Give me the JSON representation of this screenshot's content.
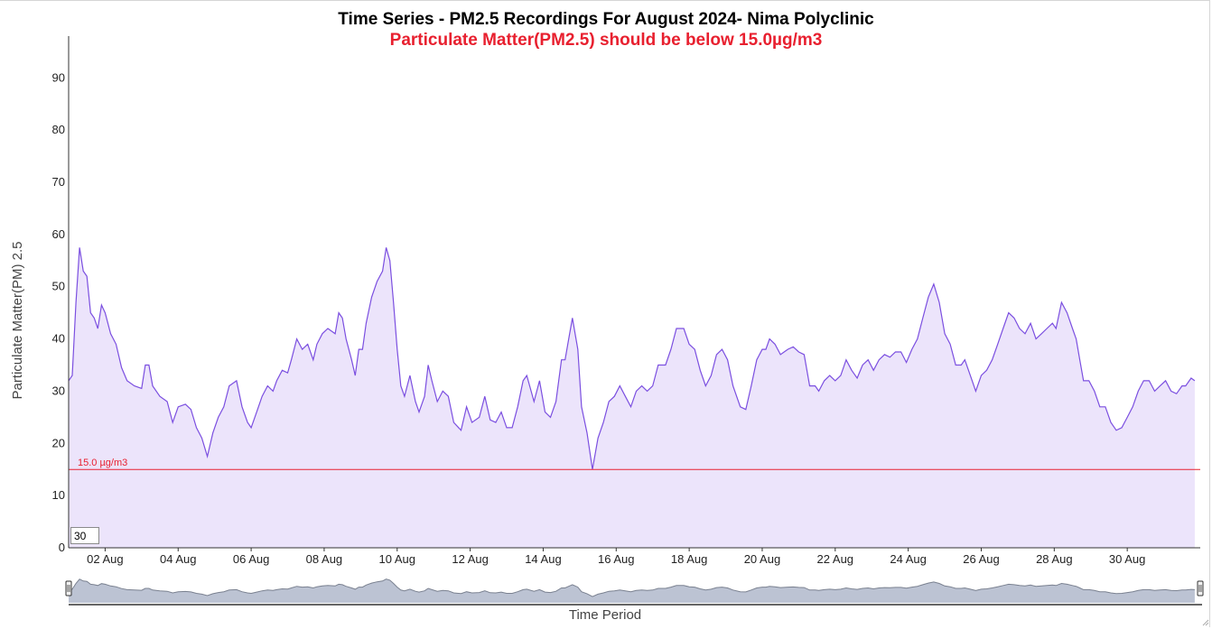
{
  "chart_data": {
    "type": "area",
    "title": "Time Series - PM2.5 Recordings For August 2024- Nima Polyclinic",
    "subtitle": "Particulate Matter(PM2.5) should be below 15.0µg/m3",
    "xlabel": "Time Period",
    "ylabel": "Particulate Matter(PM) 2.5",
    "ylim": [
      0,
      98
    ],
    "yticks": [
      0,
      10,
      20,
      30,
      40,
      50,
      60,
      70,
      80,
      90
    ],
    "xticks": [
      "02 Aug",
      "04 Aug",
      "06 Aug",
      "08 Aug",
      "10 Aug",
      "12 Aug",
      "14 Aug",
      "16 Aug",
      "18 Aug",
      "20 Aug",
      "22 Aug",
      "24 Aug",
      "26 Aug",
      "28 Aug",
      "30 Aug"
    ],
    "xlim_day": [
      1.0,
      32.0
    ],
    "threshold": {
      "value": 15.0,
      "label": "15.0 µg/m3",
      "color": "#e8202f"
    },
    "line_color": "#7b4fe0",
    "fill_color": "#ece4fb",
    "grid": false,
    "series": [
      {
        "values": [
          [
            1.0,
            32
          ],
          [
            1.1,
            33
          ],
          [
            1.2,
            47
          ],
          [
            1.3,
            57.5
          ],
          [
            1.4,
            53
          ],
          [
            1.5,
            52
          ],
          [
            1.6,
            45
          ],
          [
            1.7,
            44
          ],
          [
            1.8,
            42
          ],
          [
            1.9,
            46.5
          ],
          [
            2.0,
            45
          ],
          [
            2.15,
            41
          ],
          [
            2.3,
            39
          ],
          [
            2.45,
            34.5
          ],
          [
            2.6,
            32
          ],
          [
            2.8,
            31
          ],
          [
            3.0,
            30.5
          ],
          [
            3.1,
            35
          ],
          [
            3.2,
            35
          ],
          [
            3.3,
            31
          ],
          [
            3.5,
            29
          ],
          [
            3.7,
            28
          ],
          [
            3.85,
            24
          ],
          [
            4.0,
            27
          ],
          [
            4.2,
            27.5
          ],
          [
            4.35,
            26.5
          ],
          [
            4.5,
            23
          ],
          [
            4.65,
            21
          ],
          [
            4.8,
            17.5
          ],
          [
            4.95,
            22
          ],
          [
            5.1,
            25
          ],
          [
            5.25,
            27
          ],
          [
            5.4,
            31
          ],
          [
            5.6,
            32
          ],
          [
            5.75,
            27
          ],
          [
            5.9,
            24
          ],
          [
            6.0,
            23
          ],
          [
            6.15,
            26
          ],
          [
            6.3,
            29
          ],
          [
            6.45,
            31
          ],
          [
            6.6,
            30
          ],
          [
            6.7,
            32
          ],
          [
            6.85,
            34
          ],
          [
            7.0,
            33.5
          ],
          [
            7.1,
            36
          ],
          [
            7.25,
            40
          ],
          [
            7.4,
            38
          ],
          [
            7.55,
            39
          ],
          [
            7.7,
            36
          ],
          [
            7.8,
            39
          ],
          [
            7.95,
            41
          ],
          [
            8.1,
            42
          ],
          [
            8.3,
            41
          ],
          [
            8.4,
            45
          ],
          [
            8.5,
            44
          ],
          [
            8.6,
            40
          ],
          [
            8.75,
            36
          ],
          [
            8.85,
            33
          ],
          [
            8.95,
            38
          ],
          [
            9.05,
            38
          ],
          [
            9.15,
            43
          ],
          [
            9.3,
            48
          ],
          [
            9.45,
            51
          ],
          [
            9.6,
            53
          ],
          [
            9.7,
            57.5
          ],
          [
            9.8,
            55
          ],
          [
            9.9,
            47
          ],
          [
            10.0,
            38
          ],
          [
            10.1,
            31
          ],
          [
            10.2,
            29
          ],
          [
            10.35,
            33
          ],
          [
            10.5,
            28
          ],
          [
            10.6,
            26
          ],
          [
            10.75,
            29
          ],
          [
            10.85,
            35
          ],
          [
            10.95,
            32
          ],
          [
            11.1,
            28
          ],
          [
            11.25,
            30
          ],
          [
            11.4,
            29
          ],
          [
            11.55,
            24
          ],
          [
            11.75,
            22.5
          ],
          [
            11.9,
            27
          ],
          [
            12.05,
            24
          ],
          [
            12.25,
            25
          ],
          [
            12.4,
            29
          ],
          [
            12.55,
            24.5
          ],
          [
            12.7,
            24
          ],
          [
            12.85,
            26
          ],
          [
            13.0,
            23
          ],
          [
            13.15,
            23
          ],
          [
            13.3,
            27
          ],
          [
            13.45,
            32
          ],
          [
            13.55,
            33
          ],
          [
            13.75,
            28
          ],
          [
            13.9,
            32
          ],
          [
            14.05,
            26
          ],
          [
            14.2,
            25
          ],
          [
            14.35,
            28
          ],
          [
            14.5,
            36
          ],
          [
            14.6,
            36
          ],
          [
            14.7,
            40
          ],
          [
            14.8,
            44
          ],
          [
            14.95,
            38
          ],
          [
            15.05,
            27
          ],
          [
            15.2,
            22
          ],
          [
            15.35,
            15
          ],
          [
            15.5,
            21
          ],
          [
            15.65,
            24
          ],
          [
            15.8,
            28
          ],
          [
            15.95,
            29
          ],
          [
            16.1,
            31
          ],
          [
            16.25,
            29
          ],
          [
            16.4,
            27
          ],
          [
            16.55,
            30
          ],
          [
            16.7,
            31
          ],
          [
            16.85,
            30
          ],
          [
            17.0,
            31
          ],
          [
            17.15,
            35
          ],
          [
            17.35,
            35
          ],
          [
            17.5,
            38
          ],
          [
            17.65,
            42
          ],
          [
            17.85,
            42
          ],
          [
            18.0,
            39
          ],
          [
            18.15,
            38
          ],
          [
            18.3,
            34
          ],
          [
            18.45,
            31
          ],
          [
            18.6,
            33
          ],
          [
            18.75,
            37
          ],
          [
            18.9,
            38
          ],
          [
            19.05,
            36
          ],
          [
            19.2,
            31
          ],
          [
            19.4,
            27
          ],
          [
            19.55,
            26.5
          ],
          [
            19.7,
            31
          ],
          [
            19.85,
            36
          ],
          [
            20.0,
            38
          ],
          [
            20.1,
            38
          ],
          [
            20.2,
            40
          ],
          [
            20.35,
            39
          ],
          [
            20.5,
            37
          ],
          [
            20.7,
            38
          ],
          [
            20.85,
            38.5
          ],
          [
            21.0,
            37.5
          ],
          [
            21.15,
            37
          ],
          [
            21.3,
            31
          ],
          [
            21.45,
            31
          ],
          [
            21.55,
            30
          ],
          [
            21.7,
            32
          ],
          [
            21.85,
            33
          ],
          [
            22.0,
            32
          ],
          [
            22.15,
            33
          ],
          [
            22.3,
            36
          ],
          [
            22.45,
            34
          ],
          [
            22.6,
            32.5
          ],
          [
            22.75,
            35
          ],
          [
            22.9,
            36
          ],
          [
            23.05,
            34
          ],
          [
            23.2,
            36
          ],
          [
            23.35,
            37
          ],
          [
            23.5,
            36.5
          ],
          [
            23.65,
            37.5
          ],
          [
            23.8,
            37.5
          ],
          [
            23.95,
            35.5
          ],
          [
            24.1,
            38
          ],
          [
            24.25,
            40
          ],
          [
            24.4,
            44
          ],
          [
            24.55,
            48
          ],
          [
            24.7,
            50.5
          ],
          [
            24.85,
            47
          ],
          [
            25.0,
            41
          ],
          [
            25.15,
            39
          ],
          [
            25.3,
            35
          ],
          [
            25.45,
            35
          ],
          [
            25.55,
            36
          ],
          [
            25.7,
            33
          ],
          [
            25.85,
            30
          ],
          [
            26.0,
            33
          ],
          [
            26.15,
            34
          ],
          [
            26.3,
            36
          ],
          [
            26.45,
            39
          ],
          [
            26.6,
            42
          ],
          [
            26.75,
            45
          ],
          [
            26.9,
            44
          ],
          [
            27.05,
            42
          ],
          [
            27.2,
            41
          ],
          [
            27.35,
            43
          ],
          [
            27.5,
            40
          ],
          [
            27.65,
            41
          ],
          [
            27.8,
            42
          ],
          [
            27.95,
            43
          ],
          [
            28.05,
            42
          ],
          [
            28.2,
            47
          ],
          [
            28.35,
            45
          ],
          [
            28.5,
            42
          ],
          [
            28.6,
            40
          ],
          [
            28.7,
            36
          ],
          [
            28.8,
            32
          ],
          [
            28.95,
            32
          ],
          [
            29.1,
            30
          ],
          [
            29.25,
            27
          ],
          [
            29.4,
            27
          ],
          [
            29.55,
            24
          ],
          [
            29.7,
            22.5
          ],
          [
            29.85,
            23
          ],
          [
            30.0,
            25
          ],
          [
            30.15,
            27
          ],
          [
            30.3,
            30
          ],
          [
            30.45,
            32
          ],
          [
            30.6,
            32
          ],
          [
            30.75,
            30
          ],
          [
            30.9,
            31
          ],
          [
            31.05,
            32
          ],
          [
            31.2,
            30
          ],
          [
            31.35,
            29.5
          ],
          [
            31.5,
            31
          ],
          [
            31.6,
            31
          ],
          [
            31.75,
            32.5
          ],
          [
            31.85,
            32
          ]
        ]
      }
    ]
  },
  "controls": {
    "rolling_period_value": "30"
  },
  "navigator": {
    "fill": "#bcc3d3",
    "line": "#7a8190"
  }
}
